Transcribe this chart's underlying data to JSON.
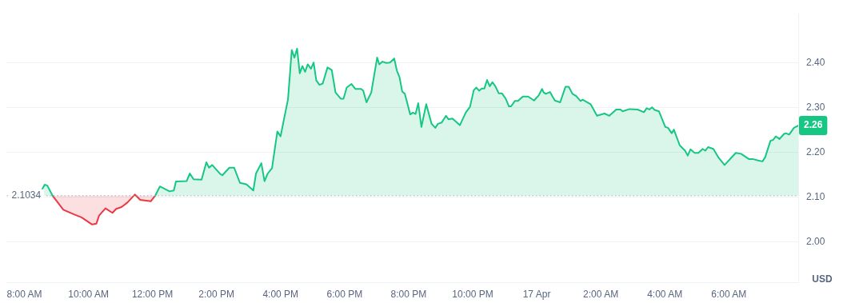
{
  "chart_data": {
    "type": "area",
    "ylabel": "USD",
    "x": [
      "--04-16T08:33",
      "--04-16T08:38",
      "--04-16T08:43",
      "--04-16T08:53",
      "--04-16T09:13",
      "--04-16T09:32",
      "--04-16T09:47",
      "--04-16T10:07",
      "--04-16T10:15",
      "--04-16T10:20",
      "--04-16T10:32",
      "--04-16T10:45",
      "--04-16T10:52",
      "--04-16T11:02",
      "--04-16T11:13",
      "--04-16T11:27",
      "--04-16T11:37",
      "--04-16T11:57",
      "--04-16T12:05",
      "--04-16T12:14",
      "--04-16T12:32",
      "--04-16T12:40",
      "--04-16T12:44",
      "--04-16T13:04",
      "--04-16T13:10",
      "--04-16T13:17",
      "--04-16T13:32",
      "--04-16T13:41",
      "--04-16T13:46",
      "--04-16T13:52",
      "--04-16T14:07",
      "--04-16T14:11",
      "--04-16T14:24",
      "--04-16T14:33",
      "--04-16T14:44",
      "--04-16T14:56",
      "--04-16T15:09",
      "--04-16T15:14",
      "--04-16T15:24",
      "--04-16T15:30",
      "--04-16T15:36",
      "--04-16T15:44",
      "--04-16T15:54",
      "--04-16T16:00",
      "--04-16T16:14",
      "--04-16T16:21",
      "--04-16T16:26",
      "--04-16T16:31",
      "--04-16T16:36",
      "--04-16T16:41",
      "--04-16T16:46",
      "--04-16T16:51",
      "--04-16T16:57",
      "--04-16T17:02",
      "--04-16T17:07",
      "--04-16T17:13",
      "--04-16T17:19",
      "--04-16T17:28",
      "--04-16T17:36",
      "--04-16T17:43",
      "--04-16T17:53",
      "--04-16T17:58",
      "--04-16T18:04",
      "--04-16T18:13",
      "--04-16T18:20",
      "--04-16T18:31",
      "--04-16T18:35",
      "--04-16T18:41",
      "--04-16T18:50",
      "--04-16T19:01",
      "--04-16T19:05",
      "--04-16T19:11",
      "--04-16T19:18",
      "--04-16T19:25",
      "--04-16T19:33",
      "--04-16T19:38",
      "--04-16T19:43",
      "--04-16T19:48",
      "--04-16T19:53",
      "--04-16T20:03",
      "--04-16T20:08",
      "--04-16T20:13",
      "--04-16T20:18",
      "--04-16T20:24",
      "--04-16T20:33",
      "--04-16T20:43",
      "--04-16T20:50",
      "--04-16T20:55",
      "--04-16T21:02",
      "--04-16T21:10",
      "--04-16T21:15",
      "--04-16T21:22",
      "--04-16T21:36",
      "--04-16T21:47",
      "--04-16T21:55",
      "--04-16T22:02",
      "--04-16T22:07",
      "--04-16T22:12",
      "--04-16T22:17",
      "--04-16T22:22",
      "--04-16T22:27",
      "--04-16T22:32",
      "--04-16T22:37",
      "--04-16T22:42",
      "--04-16T22:49",
      "--04-16T22:55",
      "--04-16T23:02",
      "--04-16T23:08",
      "--04-16T23:12",
      "--04-16T23:19",
      "--04-16T23:25",
      "--04-16T23:34",
      "--04-16T23:44",
      "--04-16T23:55",
      "--04-17T00:04",
      "--04-17T00:10",
      "--04-17T00:13",
      "--04-17T00:17",
      "--04-17T00:25",
      "--04-17T00:34",
      "--04-17T00:44",
      "--04-17T00:54",
      "--04-17T01:00",
      "--04-17T01:07",
      "--04-17T01:14",
      "--04-17T01:22",
      "--04-17T01:26",
      "--04-17T01:41",
      "--04-17T01:53",
      "--04-17T02:07",
      "--04-17T02:16",
      "--04-17T02:29",
      "--04-17T02:37",
      "--04-17T02:41",
      "--04-17T02:54",
      "--04-17T03:09",
      "--04-17T03:21",
      "--04-17T03:26",
      "--04-17T03:31",
      "--04-17T03:36",
      "--04-17T03:41",
      "--04-17T03:49",
      "--04-17T04:01",
      "--04-17T04:06",
      "--04-17T04:13",
      "--04-17T04:17",
      "--04-17T04:28",
      "--04-17T04:38",
      "--04-17T04:43",
      "--04-17T04:48",
      "--04-17T04:56",
      "--04-17T05:03",
      "--04-17T05:11",
      "--04-17T05:16",
      "--04-17T05:21",
      "--04-17T05:31",
      "--04-17T05:41",
      "--04-17T05:52",
      "--04-17T06:03",
      "--04-17T06:13",
      "--04-17T06:23",
      "--04-17T06:38",
      "--04-17T06:46",
      "--04-17T06:55",
      "--04-17T07:03",
      "--04-17T07:08",
      "--04-17T07:18",
      "--04-17T07:23",
      "--04-17T07:28",
      "--04-17T07:35",
      "--04-17T07:43",
      "--04-17T07:47",
      "--04-17T07:53",
      "--04-17T08:02",
      "--04-17T08:10"
    ],
    "series": [
      {
        "color": "#16c784",
        "values": [
          2.117,
          2.128,
          2.126,
          2.103,
          null,
          null,
          null,
          null,
          null,
          null,
          null,
          null,
          null,
          null,
          null,
          null,
          null,
          null,
          2.103,
          2.124,
          2.113,
          2.115,
          2.135,
          2.136,
          2.153,
          2.14,
          2.139,
          2.178,
          2.166,
          2.172,
          2.152,
          2.149,
          2.166,
          2.166,
          2.132,
          2.129,
          2.115,
          2.153,
          2.176,
          2.136,
          2.153,
          2.165,
          2.247,
          2.236,
          2.319,
          2.429,
          2.412,
          2.432,
          2.377,
          2.393,
          2.38,
          2.397,
          2.387,
          2.401,
          2.361,
          2.351,
          2.354,
          2.39,
          2.384,
          2.334,
          2.32,
          2.32,
          2.345,
          2.353,
          2.342,
          2.342,
          2.338,
          2.312,
          2.334,
          2.412,
          2.397,
          2.403,
          2.4,
          2.401,
          2.41,
          2.383,
          2.368,
          2.336,
          2.331,
          2.285,
          2.289,
          2.286,
          2.31,
          2.257,
          2.308,
          2.264,
          2.255,
          2.264,
          2.267,
          2.282,
          2.274,
          2.276,
          2.261,
          2.289,
          2.302,
          2.339,
          2.345,
          2.338,
          2.343,
          2.343,
          2.362,
          2.348,
          2.357,
          2.349,
          2.332,
          2.332,
          2.32,
          2.303,
          2.303,
          2.315,
          2.315,
          2.325,
          2.325,
          2.316,
          2.328,
          2.342,
          2.334,
          2.331,
          2.335,
          2.316,
          2.312,
          2.347,
          2.347,
          2.331,
          2.326,
          2.315,
          2.318,
          2.308,
          2.282,
          2.287,
          2.282,
          2.296,
          2.296,
          2.292,
          2.297,
          2.296,
          2.29,
          2.299,
          2.296,
          2.301,
          2.295,
          2.292,
          2.257,
          2.255,
          2.243,
          2.251,
          2.216,
          2.204,
          2.193,
          2.207,
          2.199,
          2.199,
          2.208,
          2.204,
          2.212,
          2.208,
          2.188,
          2.172,
          2.186,
          2.199,
          2.197,
          2.185,
          2.185,
          2.182,
          2.18,
          2.189,
          2.226,
          2.228,
          2.236,
          2.23,
          2.241,
          2.243,
          2.24,
          2.255,
          2.26
        ]
      },
      {
        "color": "#ea3943",
        "x": [
          "--04-16T08:53",
          "--04-16T09:13",
          "--04-16T09:32",
          "--04-16T09:47",
          "--04-16T10:07",
          "--04-16T10:15",
          "--04-16T10:20",
          "--04-16T10:32",
          "--04-16T10:45",
          "--04-16T10:52",
          "--04-16T11:02",
          "--04-16T11:13",
          "--04-16T11:27",
          "--04-16T11:37",
          "--04-16T11:57",
          "--04-16T12:05"
        ],
        "values": [
          2.103,
          2.072,
          2.062,
          2.055,
          2.039,
          2.041,
          2.059,
          2.075,
          2.065,
          2.074,
          2.078,
          2.088,
          2.106,
          2.094,
          2.091,
          2.103
        ]
      }
    ],
    "xlim": [
      "--04-16T07:27",
      "--04-17T08:10"
    ],
    "xticks": [
      {
        "value": "--04-16T08:00",
        "label": "8:00 AM"
      },
      {
        "value": "--04-16T10:00",
        "label": "10:00 AM"
      },
      {
        "value": "--04-16T12:00",
        "label": "12:00 PM"
      },
      {
        "value": "--04-16T14:00",
        "label": "2:00 PM"
      },
      {
        "value": "--04-16T16:00",
        "label": "4:00 PM"
      },
      {
        "value": "--04-16T18:00",
        "label": "6:00 PM"
      },
      {
        "value": "--04-16T20:00",
        "label": "8:00 PM"
      },
      {
        "value": "--04-16T22:00",
        "label": "10:00 PM"
      },
      {
        "value": "--04-17T00:00",
        "label": "17 Apr"
      },
      {
        "value": "--04-17T02:00",
        "label": "2:00 AM"
      },
      {
        "value": "--04-17T04:00",
        "label": "4:00 AM"
      },
      {
        "value": "--04-17T06:00",
        "label": "6:00 AM"
      }
    ],
    "ylim": [
      1.91,
      2.51
    ],
    "yticks": [
      {
        "value": 2,
        "label": "2.00"
      },
      {
        "value": 2.1,
        "label": "2.10"
      },
      {
        "value": 2.2,
        "label": "2.20"
      },
      {
        "value": 2.3,
        "label": "2.30"
      },
      {
        "value": 2.4,
        "label": "2.40"
      }
    ],
    "grid": "y",
    "marker": "none",
    "line_style": "solid",
    "ref_lines": [
      {
        "axis": "y",
        "value": 2.1034,
        "label": "2.1034",
        "color": "#a6b0c3",
        "line_style": "dotted"
      }
    ],
    "annotations": [
      {
        "text": "2.26",
        "x": "--04-17T08:10",
        "y": 2.26
      }
    ]
  }
}
